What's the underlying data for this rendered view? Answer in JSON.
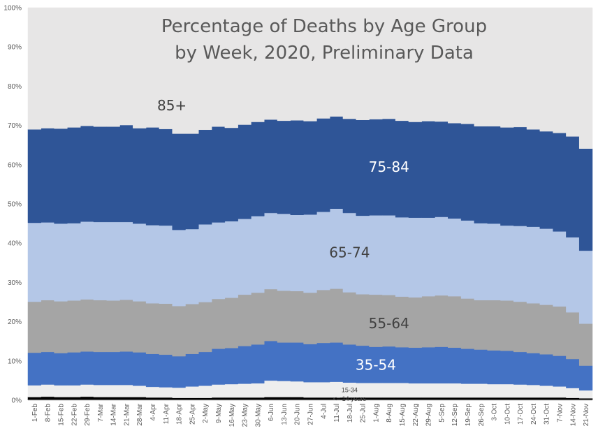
{
  "chart_data": {
    "type": "area",
    "title_line1": "Percentage of Deaths by Age Group",
    "title_line2": "by Week, 2020, Preliminary Data",
    "xlabel": "",
    "ylabel": "",
    "ylim": [
      0,
      100
    ],
    "y_ticks": [
      "0%",
      "10%",
      "20%",
      "30%",
      "40%",
      "50%",
      "60%",
      "70%",
      "80%",
      "90%",
      "100%"
    ],
    "categories": [
      "1-Feb",
      "8-Feb",
      "15-Feb",
      "22-Feb",
      "29-Feb",
      "7-Mar",
      "14-Mar",
      "21-Mar",
      "28-Mar",
      "4-Apr",
      "11-Apr",
      "18-Apr",
      "25-Apr",
      "2-May",
      "9-May",
      "16-May",
      "23-May",
      "30-May",
      "6-Jun",
      "13-Jun",
      "20-Jun",
      "27-Jun",
      "4-Jul",
      "11-Jul",
      "18-Jul",
      "25-Jul",
      "1-Aug",
      "8-Aug",
      "15-Aug",
      "22-Aug",
      "29-Aug",
      "5-Sep",
      "12-Sep",
      "19-Sep",
      "26-Sep",
      "3-Oct",
      "10-Oct",
      "17-Oct",
      "24-Oct",
      "31-Oct",
      "7-Nov",
      "14-Nov",
      "21-Nov"
    ],
    "series": [
      {
        "name": "<= 14 years",
        "color": "#000000",
        "label_color": "#ffffff",
        "values": [
          0.8,
          0.9,
          0.8,
          0.8,
          0.9,
          0.8,
          0.8,
          0.8,
          0.8,
          0.7,
          0.7,
          0.6,
          0.6,
          0.6,
          0.7,
          0.7,
          0.7,
          0.7,
          0.8,
          0.8,
          0.8,
          0.7,
          0.7,
          0.7,
          0.7,
          0.7,
          0.7,
          0.7,
          0.7,
          0.7,
          0.7,
          0.7,
          0.7,
          0.7,
          0.7,
          0.7,
          0.7,
          0.7,
          0.7,
          0.7,
          0.7,
          0.6,
          0.5
        ]
      },
      {
        "name": "15-34",
        "color": "#eeeeee",
        "label_color": "#404040",
        "values": [
          3.0,
          3.1,
          3.0,
          3.0,
          3.1,
          3.1,
          3.1,
          3.1,
          2.9,
          2.7,
          2.6,
          2.6,
          2.9,
          3.1,
          3.3,
          3.4,
          3.5,
          3.6,
          4.2,
          4.1,
          4.0,
          3.9,
          3.9,
          4.0,
          3.8,
          3.7,
          3.7,
          3.7,
          3.7,
          3.6,
          3.6,
          3.6,
          3.6,
          3.5,
          3.5,
          3.4,
          3.4,
          3.3,
          3.2,
          3.0,
          2.8,
          2.5,
          2.0
        ]
      },
      {
        "name": "35-54",
        "color": "#4472c4",
        "label_color": "#ffffff",
        "values": [
          8.3,
          8.3,
          8.2,
          8.4,
          8.4,
          8.4,
          8.4,
          8.5,
          8.5,
          8.4,
          8.3,
          8.0,
          8.3,
          8.6,
          9.1,
          9.2,
          9.6,
          9.9,
          10.1,
          9.8,
          9.9,
          9.7,
          10.0,
          10.0,
          9.7,
          9.5,
          9.2,
          9.3,
          9.1,
          9.1,
          9.2,
          9.3,
          9.1,
          8.9,
          8.7,
          8.6,
          8.5,
          8.3,
          8.1,
          8.0,
          7.8,
          7.4,
          6.3
        ]
      },
      {
        "name": "55-64",
        "color": "#a5a5a5",
        "label_color": "#404040",
        "values": [
          13.0,
          13.2,
          13.2,
          13.2,
          13.3,
          13.2,
          13.1,
          13.2,
          13.0,
          12.9,
          13.0,
          12.8,
          12.7,
          12.7,
          12.7,
          12.8,
          13.1,
          13.2,
          13.2,
          13.2,
          13.1,
          13.1,
          13.5,
          13.7,
          13.3,
          13.1,
          13.3,
          13.1,
          12.9,
          12.8,
          13.0,
          13.1,
          13.1,
          12.8,
          12.6,
          12.8,
          12.8,
          12.8,
          12.7,
          12.6,
          12.6,
          11.9,
          10.7
        ]
      },
      {
        "name": "65-74",
        "color": "#b4c7e7",
        "label_color": "#404040",
        "values": [
          20.1,
          19.8,
          19.8,
          19.7,
          19.8,
          19.9,
          20.0,
          19.8,
          19.8,
          19.9,
          19.9,
          19.4,
          19.1,
          19.8,
          19.5,
          19.5,
          19.3,
          19.5,
          19.4,
          19.6,
          19.4,
          19.9,
          19.9,
          20.4,
          20.2,
          20.0,
          20.2,
          20.3,
          20.2,
          20.3,
          20.0,
          20.0,
          19.8,
          19.9,
          19.6,
          19.5,
          19.1,
          19.3,
          19.5,
          19.4,
          19.1,
          19.1,
          18.6
        ]
      },
      {
        "name": "75-84",
        "color": "#2f5597",
        "label_color": "#ffffff",
        "values": [
          23.8,
          24.0,
          24.2,
          24.4,
          24.4,
          24.3,
          24.3,
          24.7,
          24.3,
          24.9,
          24.6,
          24.5,
          24.3,
          24.1,
          24.4,
          23.8,
          24.0,
          24.0,
          23.8,
          23.7,
          24.1,
          23.8,
          23.8,
          23.5,
          24.0,
          24.4,
          24.5,
          24.6,
          24.6,
          24.4,
          24.6,
          24.3,
          24.3,
          24.6,
          24.7,
          24.8,
          25.0,
          25.2,
          24.8,
          24.8,
          25.1,
          25.7,
          26.0
        ]
      },
      {
        "name": "85+",
        "color": "#e7e6e6",
        "label_color": "#404040",
        "values": [
          31.0,
          30.7,
          30.8,
          30.5,
          30.1,
          30.3,
          30.3,
          29.9,
          30.7,
          30.5,
          30.9,
          32.1,
          32.1,
          31.1,
          30.3,
          30.6,
          29.8,
          29.1,
          28.5,
          28.8,
          28.7,
          28.9,
          28.2,
          27.7,
          28.3,
          28.6,
          28.4,
          28.3,
          28.8,
          29.1,
          28.9,
          29.0,
          29.4,
          29.6,
          30.2,
          30.2,
          30.5,
          30.4,
          31.0,
          31.5,
          31.9,
          32.8,
          35.9
        ]
      }
    ]
  }
}
